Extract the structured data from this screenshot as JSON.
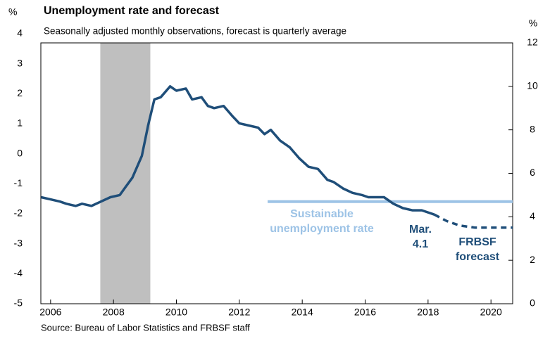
{
  "chart_data": {
    "type": "line",
    "title": "Unemployment rate and forecast",
    "subtitle": "Seasonally adjusted monthly observations, forecast is quarterly average",
    "source": "Source: Bureau of Labor Statistics and FRBSF staff",
    "y_unit": "%",
    "xlim": [
      2005.69,
      2020.69
    ],
    "xticks": [
      2006,
      2008,
      2010,
      2012,
      2014,
      2016,
      2018,
      2020
    ],
    "ylim": [
      0,
      12
    ],
    "yticks": [
      0,
      2,
      4,
      6,
      8,
      10,
      12
    ],
    "left_axis": {
      "unit": "%",
      "ylim": [
        -5,
        4
      ],
      "yticks": [
        -5,
        -4,
        -3,
        -2,
        -1,
        0,
        1,
        2,
        3,
        4
      ]
    },
    "shading": {
      "color": "#bfbfbf",
      "x": [
        2007.58,
        2009.17
      ]
    },
    "series": [
      {
        "name": "Unemployment rate",
        "color": "#1f4e79",
        "dashed": false,
        "x": [
          2005.7,
          2006.0,
          2006.3,
          2006.5,
          2006.8,
          2007.0,
          2007.3,
          2007.6,
          2007.9,
          2008.2,
          2008.4,
          2008.6,
          2008.9,
          2009.1,
          2009.3,
          2009.5,
          2009.8,
          2010.0,
          2010.3,
          2010.5,
          2010.8,
          2010.9,
          2011.0,
          2011.2,
          2011.5,
          2011.8,
          2012.0,
          2012.3,
          2012.6,
          2012.8,
          2013.0,
          2013.3,
          2013.6,
          2013.9,
          2014.2,
          2014.5,
          2014.8,
          2015.0,
          2015.3,
          2015.6,
          2015.9,
          2016.1,
          2016.4,
          2016.6,
          2016.9,
          2017.2,
          2017.5,
          2017.8,
          2018.0,
          2018.2
        ],
        "values": [
          4.9,
          4.8,
          4.7,
          4.6,
          4.5,
          4.6,
          4.5,
          4.7,
          4.9,
          5.0,
          5.4,
          5.8,
          6.8,
          8.2,
          9.4,
          9.5,
          10.0,
          9.8,
          9.9,
          9.4,
          9.5,
          9.3,
          9.1,
          9.0,
          9.1,
          8.6,
          8.3,
          8.2,
          8.1,
          7.8,
          8.0,
          7.5,
          7.2,
          6.7,
          6.3,
          6.2,
          5.7,
          5.6,
          5.3,
          5.1,
          5.0,
          4.9,
          4.9,
          4.9,
          4.6,
          4.4,
          4.3,
          4.3,
          4.2,
          4.1
        ]
      },
      {
        "name": "FRBSF forecast",
        "color": "#1f4e79",
        "dashed": true,
        "x": [
          2018.2,
          2018.6,
          2019.0,
          2019.5,
          2020.0,
          2020.69
        ],
        "values": [
          4.1,
          3.8,
          3.6,
          3.5,
          3.5,
          3.5
        ]
      },
      {
        "name": "Sustainable unemployment rate",
        "color": "#9dc3e6",
        "dashed": false,
        "x": [
          2012.9,
          2020.69
        ],
        "values": [
          4.7,
          4.7
        ]
      }
    ],
    "annotations": [
      {
        "lines": [
          "Sustainable",
          "unemployment rate"
        ],
        "color": "#9dc3e6"
      },
      {
        "lines": [
          "Mar.",
          "4.1"
        ],
        "color": "#1f4e79"
      },
      {
        "lines": [
          "FRBSF",
          "forecast"
        ],
        "color": "#1f4e79"
      }
    ]
  }
}
